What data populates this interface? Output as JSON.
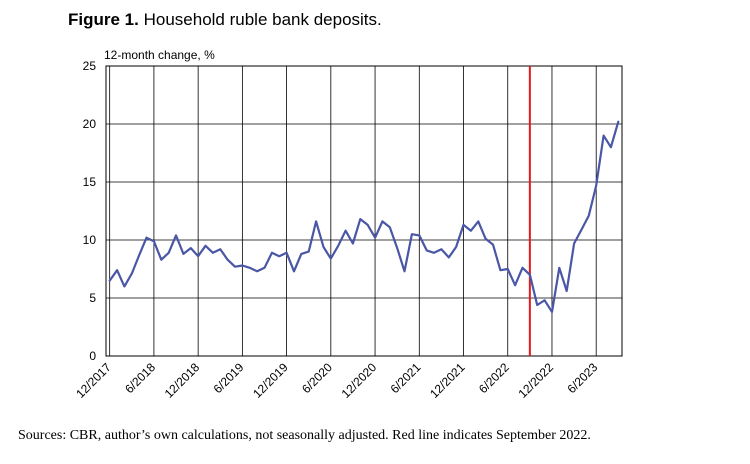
{
  "figure": {
    "label": "Figure 1.",
    "title": "Household ruble bank deposits.",
    "source": "Sources: CBR, author’s own calculations, not seasonally adjusted. Red line indicates September 2022."
  },
  "colors": {
    "series": "#4a56a6",
    "marker": "#e41a1c",
    "grid": "#000000"
  },
  "chart_data": {
    "type": "line",
    "title": "Household ruble bank deposits.",
    "ylabel": "12-month change, %",
    "xlabel": "",
    "ylim": [
      0,
      25
    ],
    "yticks": [
      0,
      5,
      10,
      15,
      20,
      25
    ],
    "grid": true,
    "x_start": "12/2017",
    "xtick_labels": [
      {
        "index": 0,
        "label": "12/2017"
      },
      {
        "index": 6,
        "label": "6/2018"
      },
      {
        "index": 12,
        "label": "12/2018"
      },
      {
        "index": 18,
        "label": "6/2019"
      },
      {
        "index": 24,
        "label": "12/2019"
      },
      {
        "index": 30,
        "label": "6/2020"
      },
      {
        "index": 36,
        "label": "12/2020"
      },
      {
        "index": 42,
        "label": "6/2021"
      },
      {
        "index": 48,
        "label": "12/2021"
      },
      {
        "index": 54,
        "label": "6/2022"
      },
      {
        "index": 60,
        "label": "12/2022"
      },
      {
        "index": 66,
        "label": "6/2023"
      }
    ],
    "annotations": [
      {
        "type": "vline",
        "index": 57,
        "label": "September 2022"
      }
    ],
    "series": [
      {
        "name": "Household ruble bank deposits, 12-month change, %",
        "values": [
          6.5,
          7.4,
          6.0,
          7.1,
          8.7,
          10.2,
          9.9,
          8.3,
          8.9,
          10.4,
          8.8,
          9.3,
          8.6,
          9.5,
          8.9,
          9.2,
          8.3,
          7.7,
          7.8,
          7.6,
          7.3,
          7.6,
          8.9,
          8.6,
          8.9,
          7.3,
          8.8,
          9.0,
          11.6,
          9.4,
          8.4,
          9.5,
          10.8,
          9.7,
          11.8,
          11.3,
          10.2,
          11.6,
          11.1,
          9.3,
          7.3,
          10.5,
          10.4,
          9.1,
          8.9,
          9.2,
          8.5,
          9.4,
          11.3,
          10.8,
          11.6,
          10.1,
          9.6,
          7.4,
          7.5,
          6.1,
          7.6,
          7.0,
          4.4,
          4.8,
          3.8,
          7.6,
          5.6,
          9.7,
          10.9,
          12.1,
          14.7,
          19.0,
          18.0,
          20.2
        ]
      }
    ]
  }
}
